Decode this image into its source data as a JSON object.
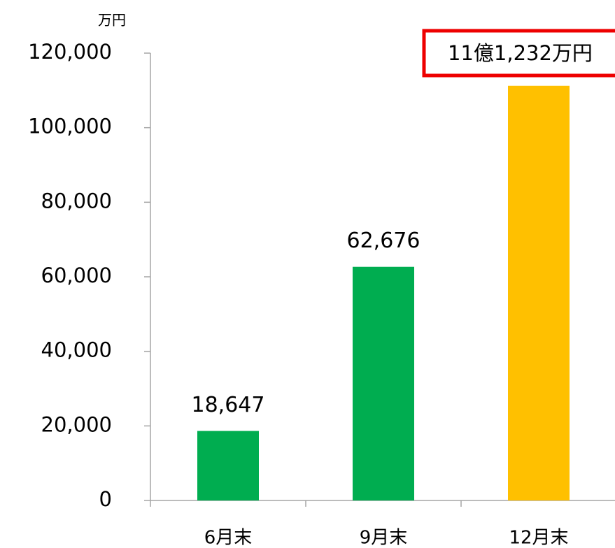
{
  "chart_data": {
    "type": "bar",
    "y_unit": "万円",
    "categories": [
      "6月末",
      "9月末",
      "12月末"
    ],
    "values": [
      18647,
      62676,
      111232
    ],
    "value_labels": [
      "18,647",
      "62,676",
      "11億1,232万円"
    ],
    "colors": [
      "#00ad50",
      "#00ad50",
      "#ffc000"
    ],
    "highlight_color": "#ee0000",
    "ylim": [
      0,
      120000
    ],
    "yticks": [
      0,
      {
        "value": 20000,
        "label": "20,000"
      },
      {
        "value": 40000,
        "label": "40,000"
      },
      {
        "value": 60000,
        "label": "60,000"
      },
      {
        "value": 80000,
        "label": "80,000"
      },
      {
        "value": 100000,
        "label": "100,000"
      },
      {
        "value": 120000,
        "label": "120,000"
      }
    ]
  }
}
